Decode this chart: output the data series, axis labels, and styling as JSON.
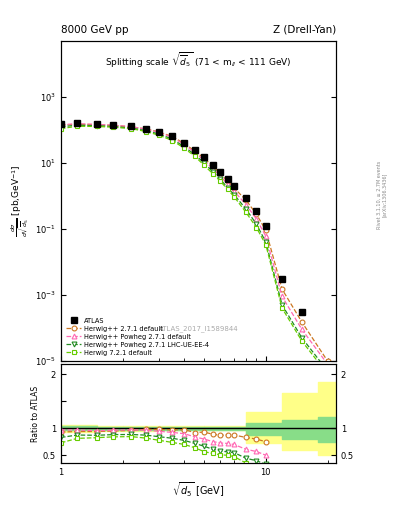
{
  "title_left": "8000 GeV pp",
  "title_right": "Z (Drell-Yan)",
  "plot_title": "Splitting scale $\\sqrt{\\overline{d}_5}$ (71 < m$_{ll}$ < 111 GeV)",
  "ylabel_main": "$\\frac{d\\sigma}{d\\sqrt{\\overline{d}_5}}$ [pb,GeV$^{-1}$]",
  "ylabel_ratio": "Ratio to ATLAS",
  "xlabel": "$\\sqrt{d\\_5}$ [GeV]",
  "watermark": "ATLAS_2017_I1589844",
  "right_label": "Rivet 3.1.10, ≥ 2.7M events",
  "right_label2": "[arXiv:1306.3436]",
  "atlas_x": [
    1.0,
    1.2,
    1.5,
    1.8,
    2.2,
    2.6,
    3.0,
    3.5,
    4.0,
    4.5,
    5.0,
    5.5,
    6.0,
    6.5,
    7.0,
    8.0,
    9.0,
    10.0,
    12.0,
    15.0,
    20.0
  ],
  "atlas_y": [
    150,
    160,
    155,
    145,
    130,
    110,
    90,
    65,
    40,
    25,
    15,
    9.0,
    5.5,
    3.2,
    2.0,
    0.9,
    0.35,
    0.12,
    0.003,
    0.0003,
    0.0
  ],
  "hw_x": [
    1.0,
    1.2,
    1.5,
    1.8,
    2.2,
    2.6,
    3.0,
    3.5,
    4.0,
    4.5,
    5.0,
    5.5,
    6.0,
    6.5,
    7.0,
    8.0,
    9.0,
    10.0,
    12.0,
    15.0,
    20.0
  ],
  "hw_y": [
    140,
    150,
    145,
    138,
    125,
    108,
    88,
    63,
    39,
    23,
    14,
    8.0,
    4.8,
    2.8,
    1.75,
    0.75,
    0.28,
    0.09,
    0.0015,
    0.00015,
    1e-05
  ],
  "hwpow_x": [
    1.0,
    1.2,
    1.5,
    1.8,
    2.2,
    2.6,
    3.0,
    3.5,
    4.0,
    4.5,
    5.0,
    5.5,
    6.0,
    6.5,
    7.0,
    8.0,
    9.0,
    10.0,
    12.0,
    15.0,
    20.0
  ],
  "hwpow_y": [
    145,
    155,
    148,
    140,
    126,
    106,
    85,
    60,
    36,
    21,
    12,
    6.8,
    4.0,
    2.3,
    1.4,
    0.55,
    0.2,
    0.06,
    0.0009,
    9e-05,
    8e-06
  ],
  "hwpow4_x": [
    1.0,
    1.2,
    1.5,
    1.8,
    2.2,
    2.6,
    3.0,
    3.5,
    4.0,
    4.5,
    5.0,
    5.5,
    6.0,
    6.5,
    7.0,
    8.0,
    9.0,
    10.0,
    12.0,
    15.0,
    20.0
  ],
  "hwpow4_y": [
    125,
    140,
    135,
    128,
    115,
    96,
    76,
    53,
    31,
    18,
    10,
    5.5,
    3.2,
    1.8,
    1.1,
    0.4,
    0.14,
    0.04,
    0.0005,
    5e-05,
    5e-06
  ],
  "hw72_x": [
    1.0,
    1.2,
    1.5,
    1.8,
    2.2,
    2.6,
    3.0,
    3.5,
    4.0,
    4.5,
    5.0,
    5.5,
    6.0,
    6.5,
    7.0,
    8.0,
    9.0,
    10.0,
    12.0,
    15.0,
    20.0
  ],
  "hw72_y": [
    110,
    130,
    128,
    122,
    110,
    90,
    70,
    48,
    28,
    16,
    8.5,
    4.8,
    2.8,
    1.6,
    0.95,
    0.32,
    0.11,
    0.033,
    0.0004,
    4e-05,
    4e-06
  ],
  "ratio_x": [
    1.0,
    1.2,
    1.5,
    1.8,
    2.2,
    2.6,
    3.0,
    3.5,
    4.0,
    4.5,
    5.0,
    5.5,
    6.0,
    6.5,
    7.0,
    8.0,
    9.0,
    10.0
  ],
  "ratio_hw": [
    0.93,
    0.94,
    0.94,
    0.95,
    0.96,
    0.98,
    0.98,
    0.97,
    0.975,
    0.92,
    0.93,
    0.89,
    0.87,
    0.875,
    0.875,
    0.83,
    0.8,
    0.75
  ],
  "ratio_hwpow": [
    0.97,
    0.97,
    0.955,
    0.965,
    0.97,
    0.965,
    0.944,
    0.923,
    0.9,
    0.84,
    0.8,
    0.755,
    0.727,
    0.72,
    0.7,
    0.61,
    0.57,
    0.5
  ],
  "ratio_hwpow4": [
    0.83,
    0.875,
    0.87,
    0.883,
    0.885,
    0.873,
    0.845,
    0.815,
    0.775,
    0.72,
    0.667,
    0.611,
    0.582,
    0.562,
    0.55,
    0.444,
    0.4,
    0.33
  ],
  "ratio_hw72": [
    0.73,
    0.813,
    0.826,
    0.841,
    0.846,
    0.818,
    0.778,
    0.738,
    0.7,
    0.64,
    0.567,
    0.533,
    0.509,
    0.5,
    0.475,
    0.356,
    0.314,
    0.275
  ],
  "band_x_edges": [
    1.0,
    1.5,
    2.0,
    3.0,
    5.0,
    8.0,
    12.0,
    18.0,
    25.0
  ],
  "band_green_lo": [
    0.96,
    0.97,
    0.97,
    0.975,
    0.975,
    0.87,
    0.8,
    0.75
  ],
  "band_green_hi": [
    1.04,
    1.03,
    1.03,
    1.025,
    1.025,
    1.1,
    1.15,
    1.2
  ],
  "band_yellow_lo": [
    0.94,
    0.95,
    0.95,
    0.96,
    0.96,
    0.72,
    0.6,
    0.5
  ],
  "band_yellow_hi": [
    1.06,
    1.05,
    1.05,
    1.04,
    1.04,
    1.3,
    1.65,
    1.85
  ],
  "color_hw": "#cc7722",
  "color_hwpow": "#ff69b4",
  "color_hwpow4": "#228b22",
  "color_hw72": "#66cc00",
  "xlim": [
    1.0,
    22.0
  ],
  "ylim_main": [
    1e-05,
    50000.0
  ],
  "ylim_ratio": [
    0.35,
    2.2
  ]
}
